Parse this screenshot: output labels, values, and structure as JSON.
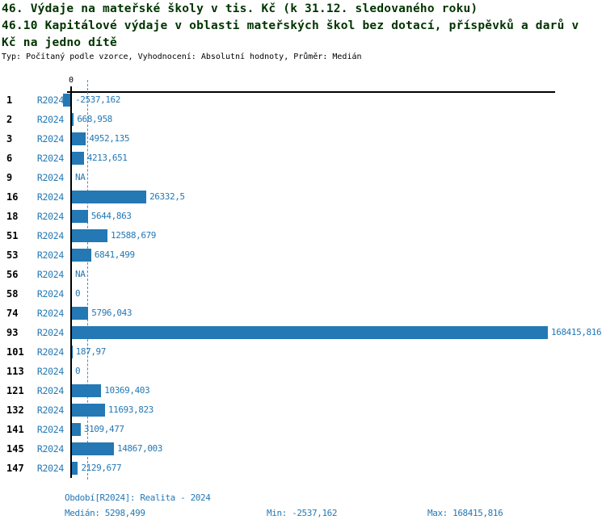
{
  "header": {
    "title_line1": "46. Výdaje na mateřské školy v tis. Kč (k 31.12. sledovaného roku)",
    "title_line2": "46.10 Kapitálové výdaje v oblasti mateřských škol bez dotací, příspěvků a darů v",
    "title_line3": "Kč na jedno dítě",
    "subtitle": "Typ: Počítaný podle vzorce, Vyhodnocení: Absolutní hodnoty, Průměr: Medián"
  },
  "chart_data": {
    "type": "bar",
    "orientation": "horizontal",
    "axis_zero_label": "0",
    "series_label": "R2024",
    "categories": [
      "1",
      "2",
      "3",
      "6",
      "9",
      "16",
      "18",
      "51",
      "53",
      "56",
      "58",
      "74",
      "93",
      "101",
      "113",
      "121",
      "132",
      "141",
      "145",
      "147"
    ],
    "values": [
      -2537.162,
      668.958,
      4952.135,
      4213.651,
      null,
      26332.5,
      5644.863,
      12588.679,
      6841.499,
      null,
      0,
      5796.043,
      168415.816,
      187.97,
      0,
      10369.403,
      11693.823,
      3109.477,
      14867.003,
      2129.677
    ],
    "value_labels": [
      "-2537,162",
      "668,958",
      "4952,135",
      "4213,651",
      "NA",
      "26332,5",
      "5644,863",
      "12588,679",
      "6841,499",
      "NA",
      "0",
      "5796,043",
      "168415,816",
      "187,97",
      "0",
      "10369,403",
      "11693,823",
      "3109,477",
      "14867,003",
      "2129,677"
    ],
    "median": 5298.499,
    "min": -2537.162,
    "max": 168415.816,
    "xlim": [
      -2537.162,
      168415.816
    ],
    "grid": false,
    "legend": "none"
  },
  "footer": {
    "period": "Období[R2024]: Realita - 2024",
    "median": "Medián: 5298,499",
    "min": "Min: -2537,162",
    "max": "Max: 168415,816"
  },
  "colors": {
    "title_green": "#003300",
    "text_blue": "#2478b4",
    "bar_blue": "#2478b4",
    "median_dash_blue": "#4a8fc0",
    "axis_black": "#000000",
    "background": "#ffffff"
  }
}
